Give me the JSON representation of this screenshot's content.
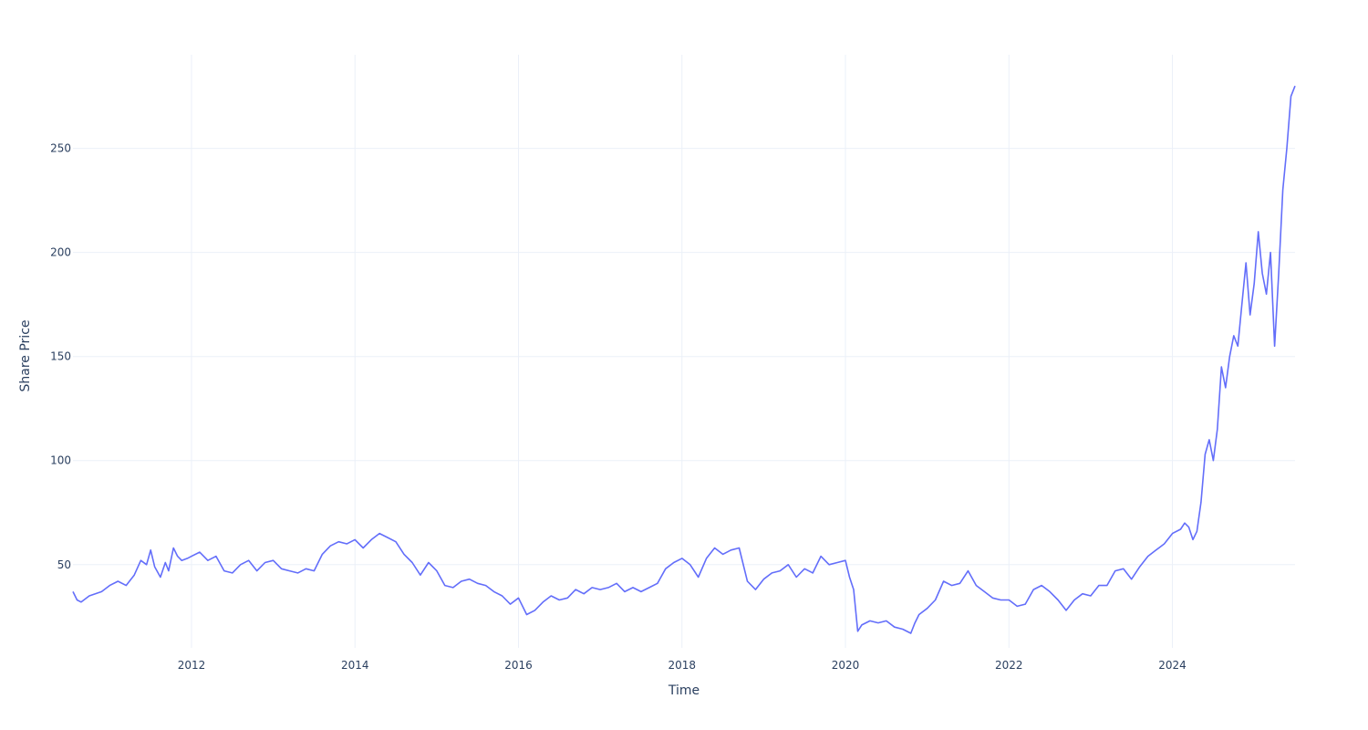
{
  "chart_data": {
    "type": "line",
    "xlabel": "Time",
    "ylabel": "Share Price",
    "x_unit": "year",
    "xlim": [
      2010.55,
      2025.5
    ],
    "ylim": [
      10,
      295
    ],
    "x_ticks": [
      {
        "value": 2012,
        "label": "2012"
      },
      {
        "value": 2014,
        "label": "2014"
      },
      {
        "value": 2016,
        "label": "2016"
      },
      {
        "value": 2018,
        "label": "2018"
      },
      {
        "value": 2020,
        "label": "2020"
      },
      {
        "value": 2022,
        "label": "2022"
      },
      {
        "value": 2024,
        "label": "2024"
      }
    ],
    "y_ticks": [
      {
        "value": 50,
        "label": "50"
      },
      {
        "value": 100,
        "label": "100"
      },
      {
        "value": 150,
        "label": "150"
      },
      {
        "value": 200,
        "label": "200"
      },
      {
        "value": 250,
        "label": "250"
      }
    ],
    "grid": true,
    "colors": {
      "line": "#636efa",
      "grid": "#ebf0f8",
      "text": "#2a3f5f"
    },
    "series": [
      {
        "x": [
          2010.55,
          2010.6,
          2010.65,
          2010.75,
          2010.9,
          2011.0,
          2011.1,
          2011.2,
          2011.3,
          2011.38,
          2011.45,
          2011.5,
          2011.55,
          2011.62,
          2011.68,
          2011.72,
          2011.78,
          2011.83,
          2011.88,
          2011.95,
          2012.0,
          2012.1,
          2012.2,
          2012.3,
          2012.4,
          2012.5,
          2012.6,
          2012.7,
          2012.8,
          2012.9,
          2013.0,
          2013.1,
          2013.2,
          2013.3,
          2013.4,
          2013.5,
          2013.6,
          2013.7,
          2013.8,
          2013.9,
          2014.0,
          2014.1,
          2014.2,
          2014.3,
          2014.4,
          2014.5,
          2014.6,
          2014.7,
          2014.8,
          2014.9,
          2015.0,
          2015.1,
          2015.2,
          2015.3,
          2015.4,
          2015.5,
          2015.6,
          2015.7,
          2015.8,
          2015.9,
          2016.0,
          2016.1,
          2016.2,
          2016.3,
          2016.4,
          2016.5,
          2016.6,
          2016.7,
          2016.8,
          2016.9,
          2017.0,
          2017.1,
          2017.2,
          2017.3,
          2017.4,
          2017.5,
          2017.6,
          2017.7,
          2017.8,
          2017.9,
          2018.0,
          2018.1,
          2018.2,
          2018.3,
          2018.4,
          2018.5,
          2018.6,
          2018.7,
          2018.8,
          2018.9,
          2019.0,
          2019.1,
          2019.2,
          2019.3,
          2019.4,
          2019.5,
          2019.6,
          2019.7,
          2019.8,
          2019.9,
          2020.0,
          2020.05,
          2020.1,
          2020.15,
          2020.2,
          2020.3,
          2020.4,
          2020.5,
          2020.6,
          2020.7,
          2020.8,
          2020.85,
          2020.9,
          2021.0,
          2021.1,
          2021.2,
          2021.3,
          2021.4,
          2021.5,
          2021.6,
          2021.7,
          2021.8,
          2021.9,
          2022.0,
          2022.1,
          2022.2,
          2022.3,
          2022.4,
          2022.5,
          2022.6,
          2022.7,
          2022.8,
          2022.9,
          2023.0,
          2023.1,
          2023.2,
          2023.3,
          2023.4,
          2023.5,
          2023.6,
          2023.7,
          2023.8,
          2023.9,
          2024.0,
          2024.1,
          2024.15,
          2024.2,
          2024.25,
          2024.3,
          2024.35,
          2024.4,
          2024.45,
          2024.5,
          2024.55,
          2024.6,
          2024.65,
          2024.7,
          2024.75,
          2024.8,
          2024.85,
          2024.9,
          2024.95,
          2025.0,
          2025.05,
          2025.1,
          2025.15,
          2025.2,
          2025.25,
          2025.3,
          2025.35,
          2025.4,
          2025.45,
          2025.5
        ],
        "y": [
          37,
          33,
          32,
          35,
          37,
          40,
          42,
          40,
          45,
          52,
          50,
          57,
          49,
          44,
          51,
          47,
          58,
          54,
          52,
          53,
          54,
          56,
          52,
          54,
          47,
          46,
          50,
          52,
          47,
          51,
          52,
          48,
          47,
          46,
          48,
          47,
          55,
          59,
          61,
          60,
          62,
          58,
          62,
          65,
          63,
          61,
          55,
          51,
          45,
          51,
          47,
          40,
          39,
          42,
          43,
          41,
          40,
          37,
          35,
          31,
          34,
          26,
          28,
          32,
          35,
          33,
          34,
          38,
          36,
          39,
          38,
          39,
          41,
          37,
          39,
          37,
          39,
          41,
          48,
          51,
          53,
          50,
          44,
          53,
          58,
          55,
          57,
          58,
          42,
          38,
          43,
          46,
          47,
          50,
          44,
          48,
          46,
          54,
          50,
          51,
          52,
          44,
          38,
          18,
          21,
          23,
          22,
          23,
          20,
          19,
          17,
          22,
          26,
          29,
          33,
          42,
          40,
          41,
          47,
          40,
          37,
          34,
          33,
          33,
          30,
          31,
          38,
          40,
          37,
          33,
          28,
          33,
          36,
          35,
          40,
          40,
          47,
          48,
          43,
          49,
          54,
          57,
          60,
          65,
          67,
          70,
          68,
          62,
          66,
          80,
          103,
          110,
          100,
          115,
          145,
          135,
          150,
          160,
          155,
          175,
          195,
          170,
          185,
          210,
          190,
          180,
          200,
          155,
          190,
          230,
          250,
          275,
          280
        ]
      }
    ]
  }
}
